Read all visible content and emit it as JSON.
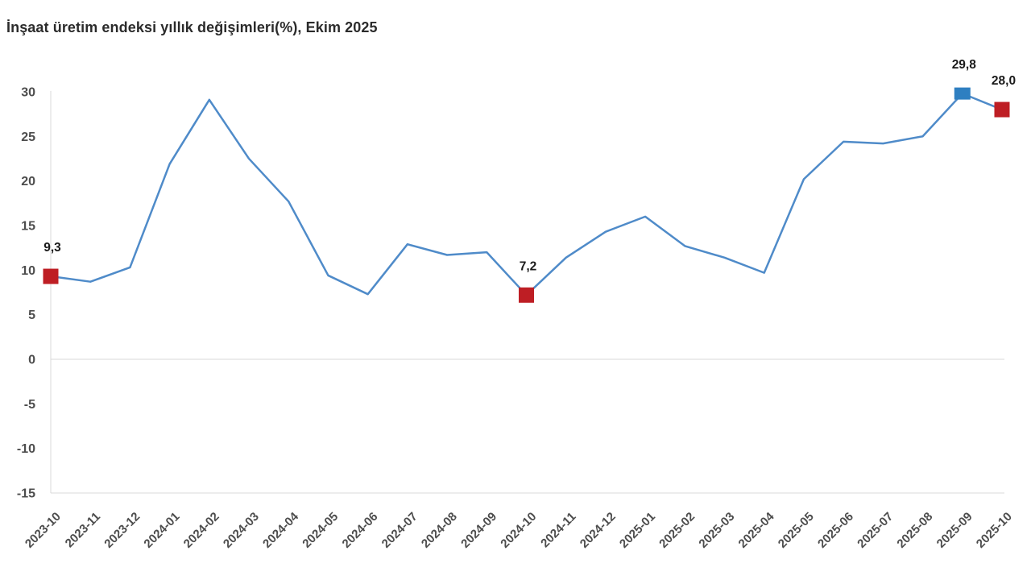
{
  "chart_data": {
    "type": "line",
    "title": "İnşaat üretim endeksi yıllık değişimleri(%), Ekim 2025",
    "categories": [
      "2023-10",
      "2023-11",
      "2023-12",
      "2024-01",
      "2024-02",
      "2024-03",
      "2024-04",
      "2024-05",
      "2024-06",
      "2024-07",
      "2024-08",
      "2024-09",
      "2024-10",
      "2024-11",
      "2024-12",
      "2025-01",
      "2025-02",
      "2025-03",
      "2025-04",
      "2025-05",
      "2025-06",
      "2025-07",
      "2025-08",
      "2025-09",
      "2025-10"
    ],
    "values": [
      9.3,
      8.7,
      10.3,
      21.9,
      29.1,
      22.5,
      17.7,
      9.4,
      7.3,
      12.9,
      11.7,
      12.0,
      7.2,
      11.4,
      14.3,
      16.0,
      12.7,
      11.4,
      9.7,
      20.2,
      24.4,
      24.2,
      25.0,
      29.8,
      28.0
    ],
    "y_ticks": [
      30,
      25,
      20,
      15,
      10,
      5,
      0,
      -5,
      -10,
      -15
    ],
    "ylim": [
      -15,
      30
    ],
    "xlabel": "",
    "ylabel": "",
    "legend": "none",
    "grid": "zero line and bottom border only, left axis line",
    "annotations": [
      {
        "category": "2023-10",
        "label": "9,3",
        "marker": "red"
      },
      {
        "category": "2024-10",
        "label": "7,2",
        "marker": "red"
      },
      {
        "category": "2025-09",
        "label": "29,8",
        "marker": "blue"
      },
      {
        "category": "2025-10",
        "label": "28,0",
        "marker": "red"
      }
    ],
    "colors": {
      "line": "#4f8bc9",
      "marker_red": "#be1e24",
      "marker_blue": "#2e7fc1",
      "axis_line": "#d9d9d9",
      "tick_text": "#4d4d4d",
      "data_label_text": "#1a1a1a"
    }
  }
}
